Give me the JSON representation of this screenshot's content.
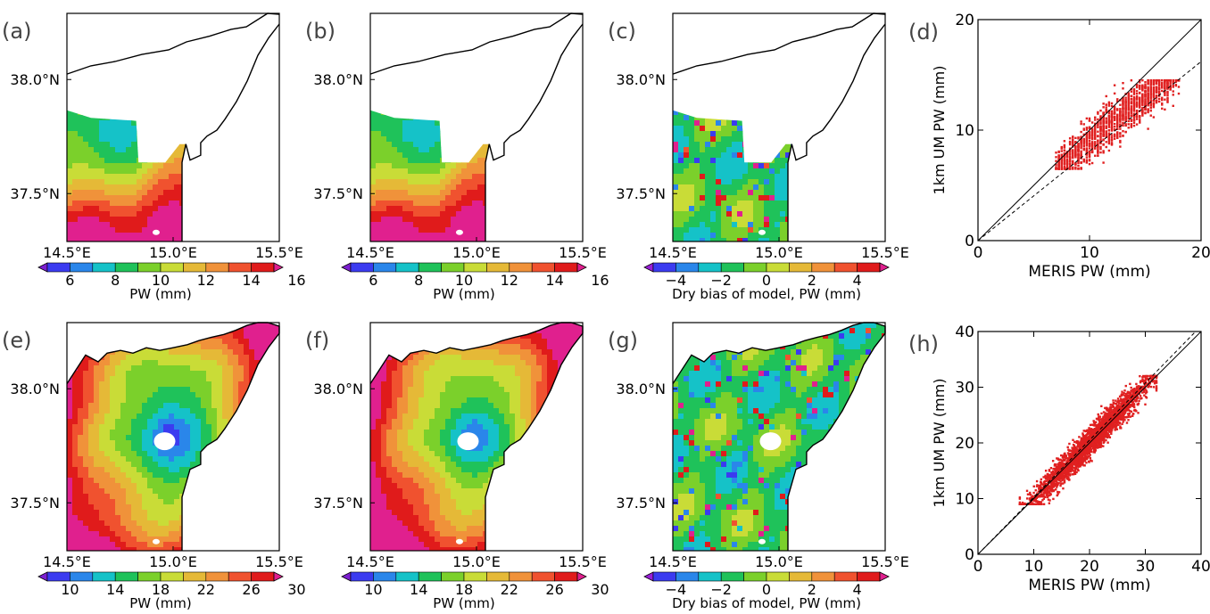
{
  "maps": [
    {
      "id": "a",
      "label": "(a)",
      "kind": "pw_low",
      "colorbar": "cb1",
      "xlab": true
    },
    {
      "id": "b",
      "label": "(b)",
      "kind": "pw_low",
      "colorbar": "cb1",
      "xlab": false
    },
    {
      "id": "c",
      "label": "(c)",
      "kind": "bias_low",
      "colorbar": "cb2",
      "xlab": false
    },
    {
      "id": "e",
      "label": "(e)",
      "kind": "pw_high",
      "colorbar": "cb3",
      "xlab": true
    },
    {
      "id": "f",
      "label": "(f)",
      "kind": "pw_high",
      "colorbar": "cb3",
      "xlab": false
    },
    {
      "id": "g",
      "label": "(g)",
      "kind": "bias_high",
      "colorbar": "cb2",
      "xlab": false
    }
  ],
  "map_axes": {
    "lat_ticks": [
      "38.0°N",
      "37.5°N"
    ],
    "lon_ticks": [
      "14.5°E",
      "15.0°E",
      "15.5°E"
    ]
  },
  "colorbars": {
    "cb1": {
      "ticks": [
        "6",
        "8",
        "10",
        "12",
        "14",
        "16"
      ],
      "label": "PW (mm)",
      "colors": [
        "#7c1fd1",
        "#3b3bf0",
        "#2a86ea",
        "#15c2c8",
        "#1fc25a",
        "#7bd02b",
        "#c9dc37",
        "#e5b937",
        "#f0923a",
        "#f0522f",
        "#e01b1b",
        "#e0208e"
      ]
    },
    "cb2": {
      "ticks": [
        "−4",
        "−2",
        "0",
        "2",
        "4"
      ],
      "label": "Dry bias of model, PW (mm)",
      "colors": [
        "#9a1fd8",
        "#3b3bf0",
        "#2a86ea",
        "#15c2c8",
        "#1fc25a",
        "#7bd02b",
        "#c9dc37",
        "#e5b937",
        "#f0923a",
        "#f0522f",
        "#e01b1b",
        "#e0208e"
      ]
    },
    "cb3": {
      "ticks": [
        "10",
        "14",
        "18",
        "22",
        "26",
        "30"
      ],
      "label": "PW (mm)",
      "colors": [
        "#7c1fd1",
        "#3b3bf0",
        "#2a86ea",
        "#15c2c8",
        "#1fc25a",
        "#7bd02b",
        "#c9dc37",
        "#e5b937",
        "#f0923a",
        "#f0522f",
        "#e01b1b",
        "#e0208e"
      ]
    }
  },
  "chart_data": [
    {
      "panel": "(d)",
      "type": "scatter",
      "xlabel": "MERIS PW (mm)",
      "ylabel": "1km UM PW (mm)",
      "xlim": [
        0,
        20
      ],
      "ylim": [
        0,
        20
      ],
      "xticks": [
        "0",
        "10",
        "20"
      ],
      "yticks": [
        "0",
        "10",
        "20"
      ],
      "point_color": "#e02020",
      "reference_lines": [
        {
          "style": "solid",
          "x": [
            0,
            20
          ],
          "y": [
            0,
            20
          ]
        },
        {
          "style": "dashed",
          "x": [
            0,
            20
          ],
          "y": [
            0,
            16.2
          ]
        }
      ],
      "point_cloud": {
        "x_range": [
          7,
          18
        ],
        "y_range": [
          6.5,
          14.5
        ],
        "fit_slope": 0.81
      }
    },
    {
      "panel": "(h)",
      "type": "scatter",
      "xlabel": "MERIS PW (mm)",
      "ylabel": "1km UM PW (mm)",
      "xlim": [
        0,
        40
      ],
      "ylim": [
        0,
        40
      ],
      "xticks": [
        "0",
        "10",
        "20",
        "30",
        "40"
      ],
      "yticks": [
        "0",
        "10",
        "20",
        "30",
        "40"
      ],
      "point_color": "#e02020",
      "reference_lines": [
        {
          "style": "solid",
          "x": [
            0,
            40
          ],
          "y": [
            0,
            40
          ]
        },
        {
          "style": "dashed",
          "x": [
            0,
            40
          ],
          "y": [
            0,
            41
          ]
        }
      ],
      "point_cloud": {
        "x_range": [
          7.5,
          32
        ],
        "y_range": [
          9,
          32
        ],
        "fit_slope": 1.02
      }
    }
  ]
}
